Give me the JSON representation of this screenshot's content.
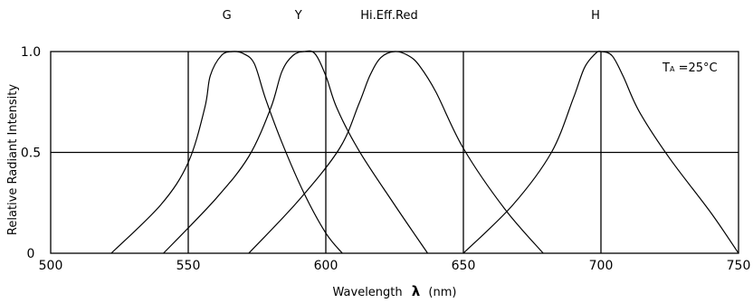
{
  "chart_data": {
    "type": "line",
    "title": "",
    "xlabel_text": "Wavelength",
    "xlabel_symbol": "λ",
    "xlabel_unit": "(nm)",
    "ylabel": "Relative Radiant Intensity",
    "xlim": [
      500,
      750
    ],
    "ylim": [
      0,
      1.0
    ],
    "x_ticks": [
      "500",
      "550",
      "600",
      "650",
      "700",
      "750"
    ],
    "y_ticks": [
      "0",
      "0.5",
      "1.0"
    ],
    "grid": true,
    "annotation": {
      "base": "T",
      "sub": "A",
      "rest": " =25°C"
    },
    "series": [
      {
        "name": "G",
        "x": [
          522,
          540,
          550,
          556,
          558,
          562,
          566,
          570,
          574,
          578,
          584,
          592,
          600,
          606
        ],
        "y": [
          0,
          0.24,
          0.45,
          0.72,
          0.88,
          0.98,
          1.0,
          0.99,
          0.94,
          0.77,
          0.55,
          0.3,
          0.1,
          0
        ]
      },
      {
        "name": "Y",
        "x": [
          541,
          560,
          572,
          580,
          584,
          588,
          592,
          596,
          600,
          604,
          612,
          624,
          637
        ],
        "y": [
          0,
          0.27,
          0.48,
          0.72,
          0.9,
          0.98,
          1.0,
          0.99,
          0.88,
          0.72,
          0.51,
          0.26,
          0
        ]
      },
      {
        "name": "Hi.Eff.Red",
        "x": [
          572,
          590,
          605,
          612,
          616,
          620,
          625,
          630,
          634,
          640,
          650,
          665,
          679
        ],
        "y": [
          0,
          0.26,
          0.52,
          0.74,
          0.88,
          0.97,
          1.0,
          0.98,
          0.93,
          0.8,
          0.52,
          0.22,
          0
        ]
      },
      {
        "name": "H",
        "x": [
          650,
          668,
          682,
          690,
          694,
          698,
          700,
          704,
          708,
          714,
          725,
          740,
          750
        ],
        "y": [
          0,
          0.24,
          0.5,
          0.77,
          0.92,
          0.99,
          1.0,
          0.98,
          0.88,
          0.7,
          0.47,
          0.2,
          0
        ]
      }
    ]
  }
}
